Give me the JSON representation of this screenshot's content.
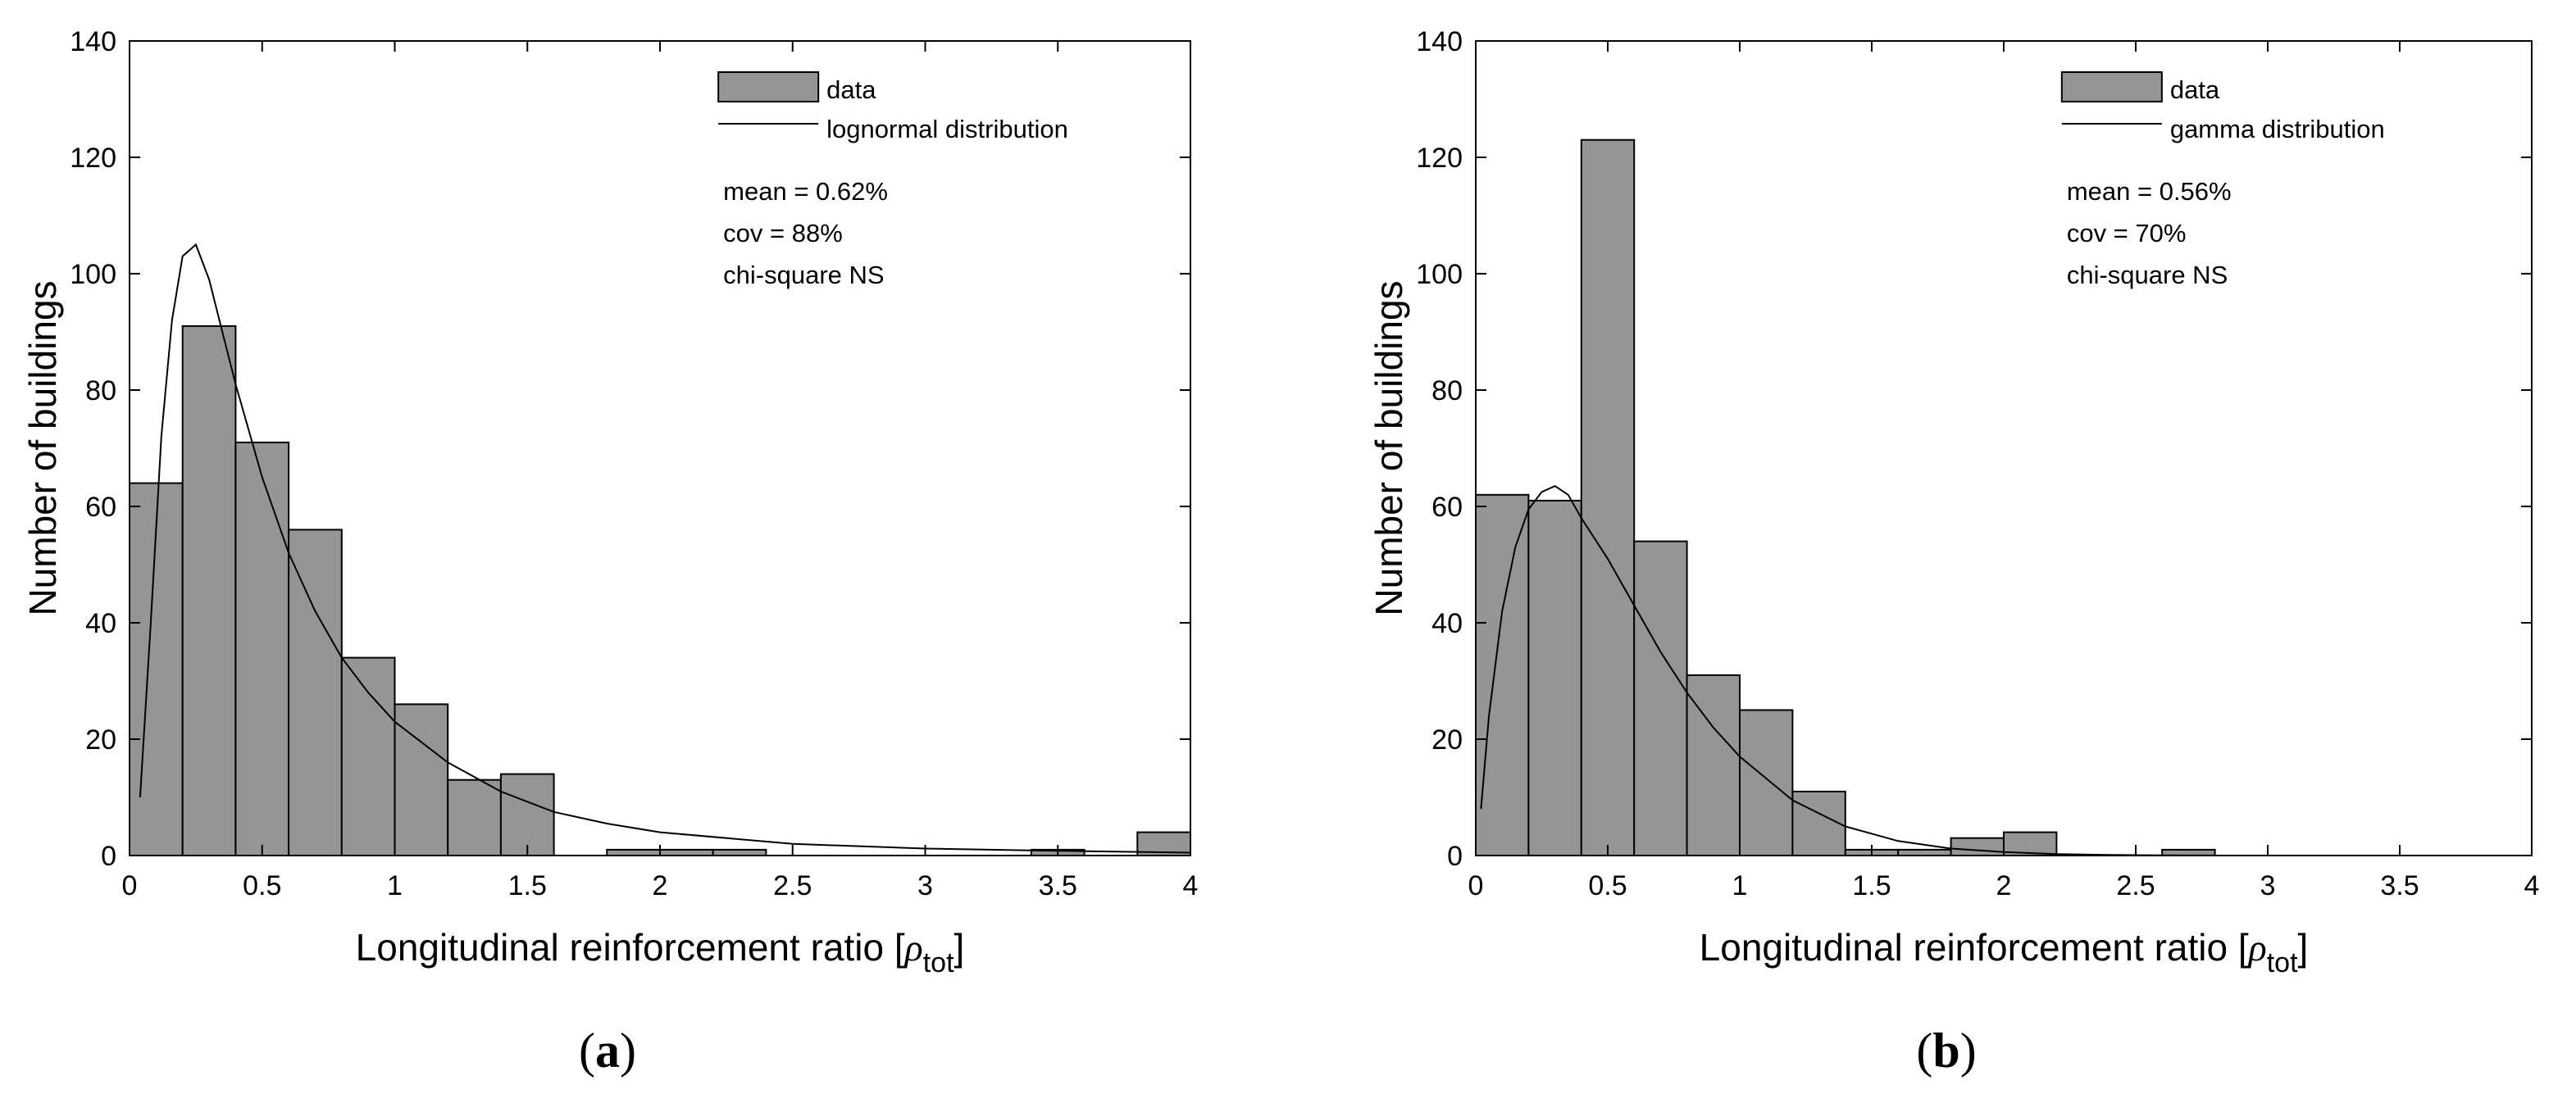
{
  "chart_data": [
    {
      "type": "bar",
      "panel_label": {
        "open": "(",
        "letter": "a",
        "close": ")"
      },
      "xlabel": {
        "main": "Longitudinal reinforcement ratio [",
        "rho": "ρ",
        "sub": "tot",
        "close": "]"
      },
      "ylabel": "Number of buildings",
      "xlim": [
        0,
        4
      ],
      "ylim": [
        0,
        140
      ],
      "xticks": [
        0,
        0.5,
        1,
        1.5,
        2,
        2.5,
        3,
        3.5,
        4
      ],
      "xtick_labels": [
        "0",
        "0.5",
        "1",
        "1.5",
        "2",
        "2.5",
        "3",
        "3.5",
        "4"
      ],
      "yticks": [
        0,
        20,
        40,
        60,
        80,
        100,
        120,
        140
      ],
      "ytick_labels": [
        "0",
        "20",
        "40",
        "60",
        "80",
        "100",
        "120",
        "140"
      ],
      "bin_width": 0.2,
      "bins": [
        {
          "x0": 0.0,
          "x1": 0.2,
          "value": 64
        },
        {
          "x0": 0.2,
          "x1": 0.4,
          "value": 91
        },
        {
          "x0": 0.4,
          "x1": 0.6,
          "value": 71
        },
        {
          "x0": 0.6,
          "x1": 0.8,
          "value": 56
        },
        {
          "x0": 0.8,
          "x1": 1.0,
          "value": 34
        },
        {
          "x0": 1.0,
          "x1": 1.2,
          "value": 26
        },
        {
          "x0": 1.2,
          "x1": 1.4,
          "value": 13
        },
        {
          "x0": 1.4,
          "x1": 1.6,
          "value": 14
        },
        {
          "x0": 1.6,
          "x1": 1.8,
          "value": 0
        },
        {
          "x0": 1.8,
          "x1": 2.0,
          "value": 1
        },
        {
          "x0": 2.0,
          "x1": 2.2,
          "value": 1
        },
        {
          "x0": 2.2,
          "x1": 2.4,
          "value": 1
        },
        {
          "x0": 2.4,
          "x1": 2.6,
          "value": 0
        },
        {
          "x0": 2.6,
          "x1": 2.8,
          "value": 0
        },
        {
          "x0": 2.8,
          "x1": 3.0,
          "value": 0
        },
        {
          "x0": 3.0,
          "x1": 3.2,
          "value": 0
        },
        {
          "x0": 3.2,
          "x1": 3.4,
          "value": 0
        },
        {
          "x0": 3.4,
          "x1": 3.6,
          "value": 1
        },
        {
          "x0": 3.6,
          "x1": 3.8,
          "value": 0
        },
        {
          "x0": 3.8,
          "x1": 4.0,
          "value": 4
        }
      ],
      "fit": {
        "distribution": "lognormal",
        "curve": [
          [
            0.04,
            10
          ],
          [
            0.08,
            40
          ],
          [
            0.12,
            72
          ],
          [
            0.16,
            92
          ],
          [
            0.2,
            103
          ],
          [
            0.25,
            105
          ],
          [
            0.3,
            99
          ],
          [
            0.35,
            90
          ],
          [
            0.4,
            81
          ],
          [
            0.5,
            65
          ],
          [
            0.6,
            52
          ],
          [
            0.7,
            42
          ],
          [
            0.8,
            34
          ],
          [
            0.9,
            28
          ],
          [
            1.0,
            23
          ],
          [
            1.2,
            16
          ],
          [
            1.4,
            11
          ],
          [
            1.6,
            7.5
          ],
          [
            1.8,
            5.5
          ],
          [
            2.0,
            4
          ],
          [
            2.5,
            2
          ],
          [
            3.0,
            1.2
          ],
          [
            3.5,
            0.8
          ],
          [
            4.0,
            0.5
          ]
        ]
      },
      "legend": {
        "bar_label": "data",
        "line_label": "lognormal distribution",
        "position": "top-right"
      },
      "stats": {
        "mean": "mean = 0.62%",
        "cov": "cov = 88%",
        "test": "chi-square NS"
      },
      "bar_color": "#959595"
    },
    {
      "type": "bar",
      "panel_label": {
        "open": "(",
        "letter": "b",
        "close": ")"
      },
      "xlabel": {
        "main": "Longitudinal reinforcement ratio [",
        "rho": "ρ",
        "sub": "tot",
        "close": "]"
      },
      "ylabel": "Number of buildings",
      "xlim": [
        0,
        4
      ],
      "ylim": [
        0,
        140
      ],
      "xticks": [
        0,
        0.5,
        1,
        1.5,
        2,
        2.5,
        3,
        3.5,
        4
      ],
      "xtick_labels": [
        "0",
        "0.5",
        "1",
        "1.5",
        "2",
        "2.5",
        "3",
        "3.5",
        "4"
      ],
      "yticks": [
        0,
        20,
        40,
        60,
        80,
        100,
        120,
        140
      ],
      "ytick_labels": [
        "0",
        "20",
        "40",
        "60",
        "80",
        "100",
        "120",
        "140"
      ],
      "bin_width": 0.2,
      "bins": [
        {
          "x0": 0.0,
          "x1": 0.2,
          "value": 62
        },
        {
          "x0": 0.2,
          "x1": 0.4,
          "value": 61
        },
        {
          "x0": 0.4,
          "x1": 0.6,
          "value": 123
        },
        {
          "x0": 0.6,
          "x1": 0.8,
          "value": 54
        },
        {
          "x0": 0.8,
          "x1": 1.0,
          "value": 31
        },
        {
          "x0": 1.0,
          "x1": 1.2,
          "value": 25
        },
        {
          "x0": 1.2,
          "x1": 1.4,
          "value": 11
        },
        {
          "x0": 1.4,
          "x1": 1.6,
          "value": 1
        },
        {
          "x0": 1.6,
          "x1": 1.8,
          "value": 1
        },
        {
          "x0": 1.8,
          "x1": 2.0,
          "value": 3
        },
        {
          "x0": 2.0,
          "x1": 2.2,
          "value": 4
        },
        {
          "x0": 2.2,
          "x1": 2.4,
          "value": 0
        },
        {
          "x0": 2.4,
          "x1": 2.6,
          "value": 0
        },
        {
          "x0": 2.6,
          "x1": 2.8,
          "value": 1
        },
        {
          "x0": 2.8,
          "x1": 3.0,
          "value": 0
        },
        {
          "x0": 3.0,
          "x1": 3.2,
          "value": 0
        },
        {
          "x0": 3.2,
          "x1": 3.4,
          "value": 0
        },
        {
          "x0": 3.4,
          "x1": 3.6,
          "value": 0
        },
        {
          "x0": 3.6,
          "x1": 3.8,
          "value": 0
        },
        {
          "x0": 3.8,
          "x1": 4.0,
          "value": 0
        }
      ],
      "fit": {
        "distribution": "gamma",
        "curve": [
          [
            0.02,
            8
          ],
          [
            0.05,
            24
          ],
          [
            0.1,
            42
          ],
          [
            0.15,
            53
          ],
          [
            0.2,
            59.5
          ],
          [
            0.25,
            62.5
          ],
          [
            0.3,
            63.5
          ],
          [
            0.35,
            62
          ],
          [
            0.4,
            58
          ],
          [
            0.5,
            51
          ],
          [
            0.6,
            43
          ],
          [
            0.7,
            35
          ],
          [
            0.8,
            28
          ],
          [
            0.9,
            22
          ],
          [
            1.0,
            17
          ],
          [
            1.2,
            9.5
          ],
          [
            1.4,
            5
          ],
          [
            1.6,
            2.5
          ],
          [
            1.8,
            1.2
          ],
          [
            2.0,
            0.6
          ],
          [
            2.2,
            0.25
          ],
          [
            2.4,
            0.1
          ],
          [
            2.6,
            0.03
          ],
          [
            2.8,
            0.01
          ]
        ]
      },
      "legend": {
        "bar_label": "data",
        "line_label": "gamma distribution",
        "position": "top-right"
      },
      "stats": {
        "mean": "mean = 0.56%",
        "cov": "cov = 70%",
        "test": "chi-square NS"
      },
      "bar_color": "#959595"
    }
  ]
}
